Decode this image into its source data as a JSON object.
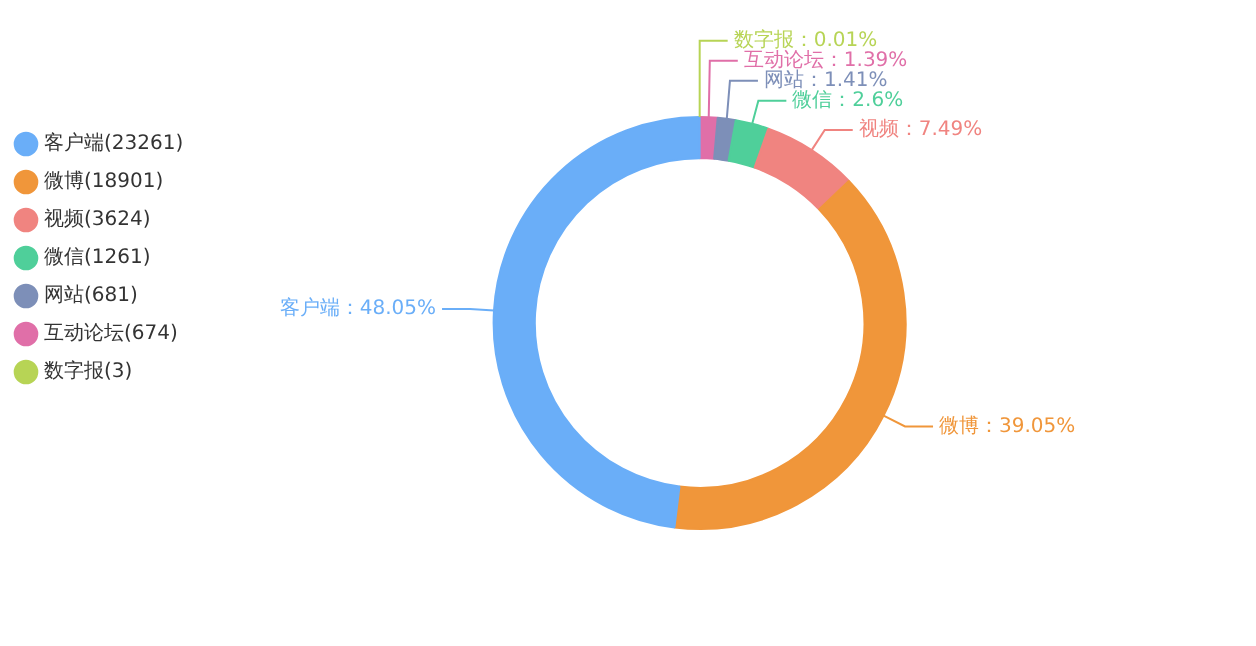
{
  "chart_data": {
    "type": "donut",
    "categories": [
      "客户端(23261)",
      "微博(18901)",
      "视频(3624)",
      "微信(1261)",
      "网站(681)",
      "互动论坛(674)",
      "数字报(3)"
    ],
    "values": [
      48.05,
      39.05,
      7.49,
      2.6,
      1.41,
      1.39,
      0.01
    ],
    "colors": [
      "#6aaef8",
      "#f0963a",
      "#f08480",
      "#4fcf9a",
      "#7d8fb8",
      "#e06fa8",
      "#b7d455"
    ],
    "value_labels": [
      "客户端：48.05%",
      "微博：39.05%",
      "视频：7.49%",
      "微信：2.6%",
      "网站：1.41%",
      "互动论坛：1.39%",
      "数字报：0.01%"
    ],
    "legend": "top left"
  }
}
